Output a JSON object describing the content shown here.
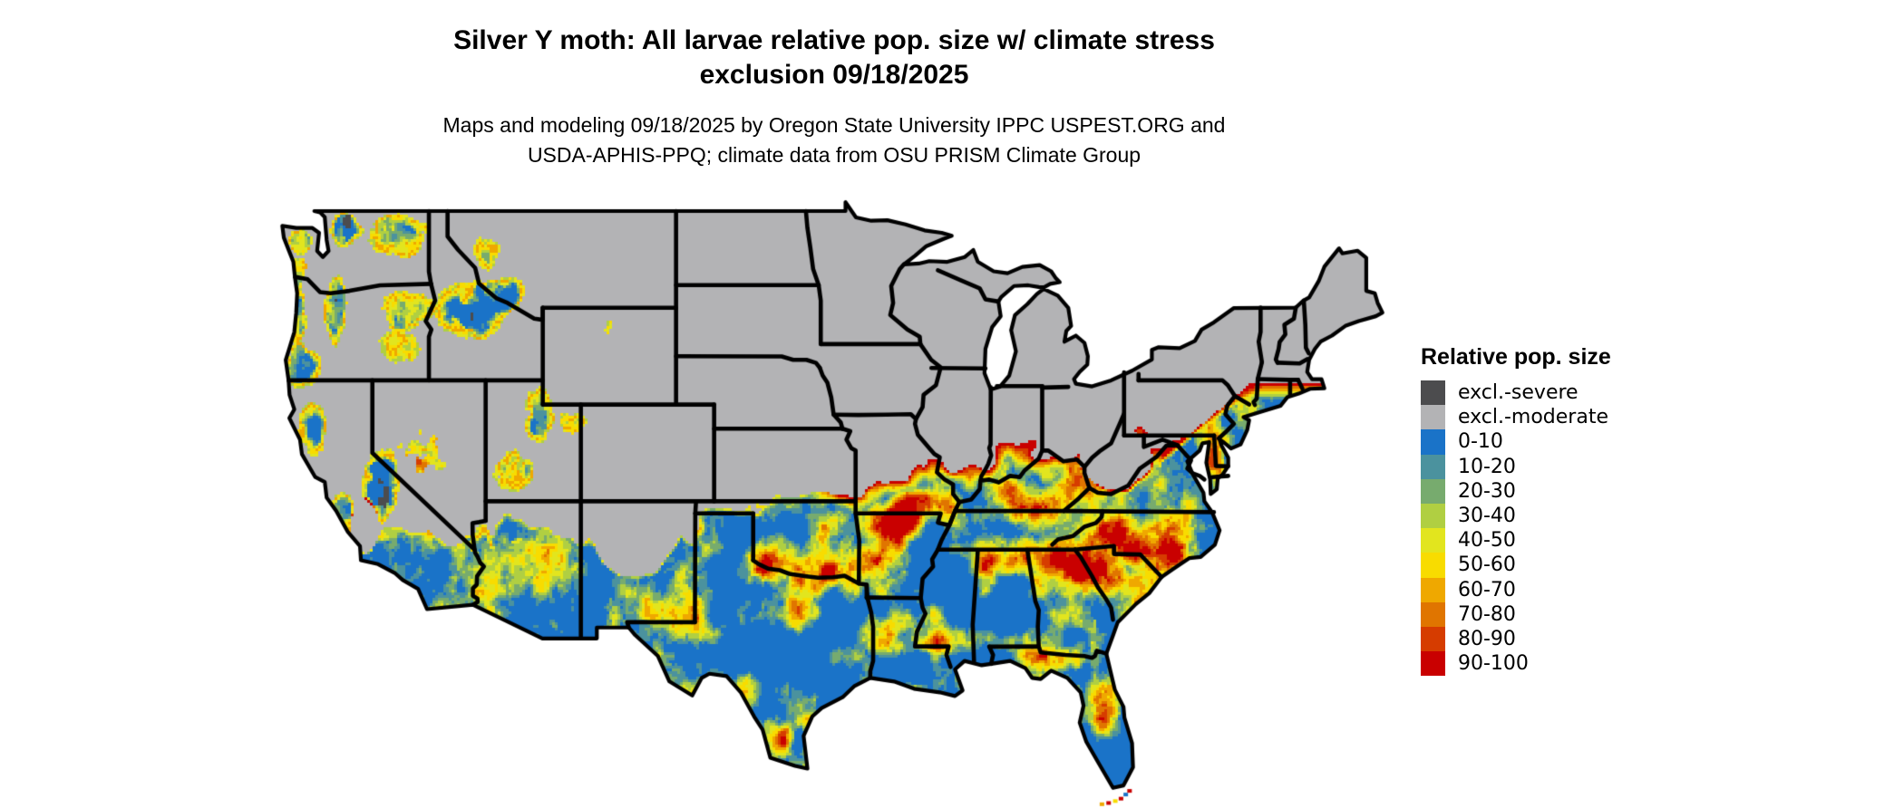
{
  "title": {
    "line1": "Silver Y moth: All larvae relative pop. size w/ climate stress",
    "line2": "exclusion 09/18/2025"
  },
  "subtitle": {
    "line1": "Maps and modeling 09/18/2025 by Oregon State University IPPC USPEST.ORG and",
    "line2": "USDA-APHIS-PPQ; climate data from OSU PRISM Climate Group"
  },
  "legend": {
    "title": "Relative pop. size",
    "items": [
      {
        "label": "excl.-severe",
        "color": "#4c4c4e"
      },
      {
        "label": "excl.-moderate",
        "color": "#b3b3b5"
      },
      {
        "label": "0-10",
        "color": "#1a73c8"
      },
      {
        "label": "10-20",
        "color": "#4b929e"
      },
      {
        "label": "20-30",
        "color": "#77ab6e"
      },
      {
        "label": "30-40",
        "color": "#b0cf42"
      },
      {
        "label": "40-50",
        "color": "#e2e51e"
      },
      {
        "label": "50-60",
        "color": "#f8dc00"
      },
      {
        "label": "60-70",
        "color": "#efa800"
      },
      {
        "label": "70-80",
        "color": "#e07500"
      },
      {
        "label": "80-90",
        "color": "#d63c00"
      },
      {
        "label": "90-100",
        "color": "#c90000"
      }
    ]
  },
  "map": {
    "background": "#ffffff",
    "land_color": "#b3b3b5",
    "border_color": "#000000",
    "region": "contiguous United States with state borders"
  }
}
